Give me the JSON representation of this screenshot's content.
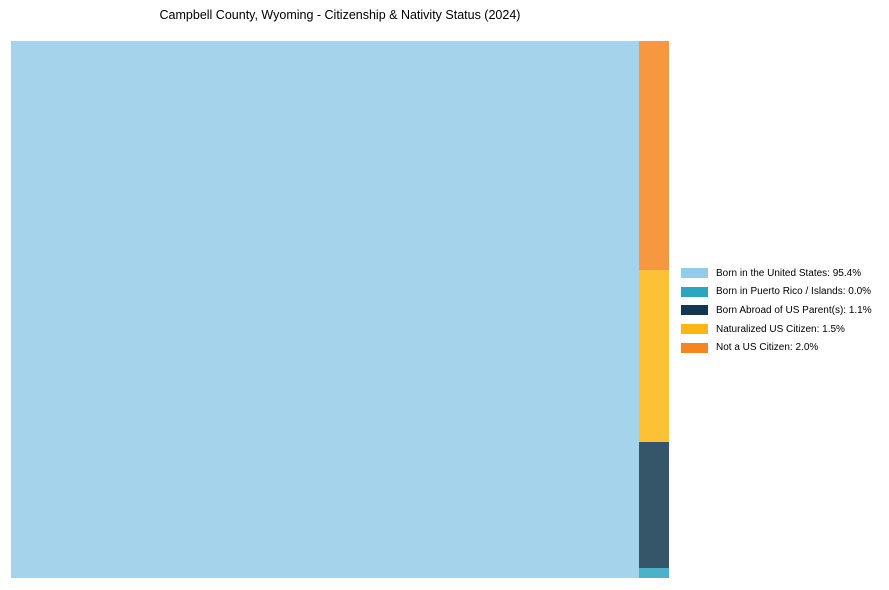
{
  "title": "Campbell County, Wyoming - Citizenship & Nativity Status (2024)",
  "chart_data": {
    "type": "treemap",
    "title": "Campbell County, Wyoming - Citizenship & Nativity Status (2024)",
    "categories": [
      "Born in the United States",
      "Born in Puerto Rico / Islands",
      "Born Abroad of US Parent(s)",
      "Naturalized US Citizen",
      "Not a US Citizen"
    ],
    "values": [
      95.4,
      0.0,
      1.1,
      1.5,
      2.0
    ],
    "unit": "%",
    "colors": [
      "#94CBE8",
      "#2CA5C0",
      "#12374F",
      "#FDB612",
      "#F5861F"
    ],
    "tile_opacity": 0.85,
    "zero_render_pct": 0.09,
    "legend_position": "right",
    "layout_hints": {
      "main_tile": "left-full-height",
      "remainder_column": "right",
      "remainder_order": "descending-top-to-bottom",
      "grid": "off",
      "axes": "none"
    },
    "legend_labels": [
      "Born in the United States: 95.4%",
      "Born in Puerto Rico / Islands: 0.0%",
      "Born Abroad of US Parent(s): 1.1%",
      "Naturalized US Citizen: 1.5%",
      "Not a US Citizen: 2.0%"
    ]
  }
}
